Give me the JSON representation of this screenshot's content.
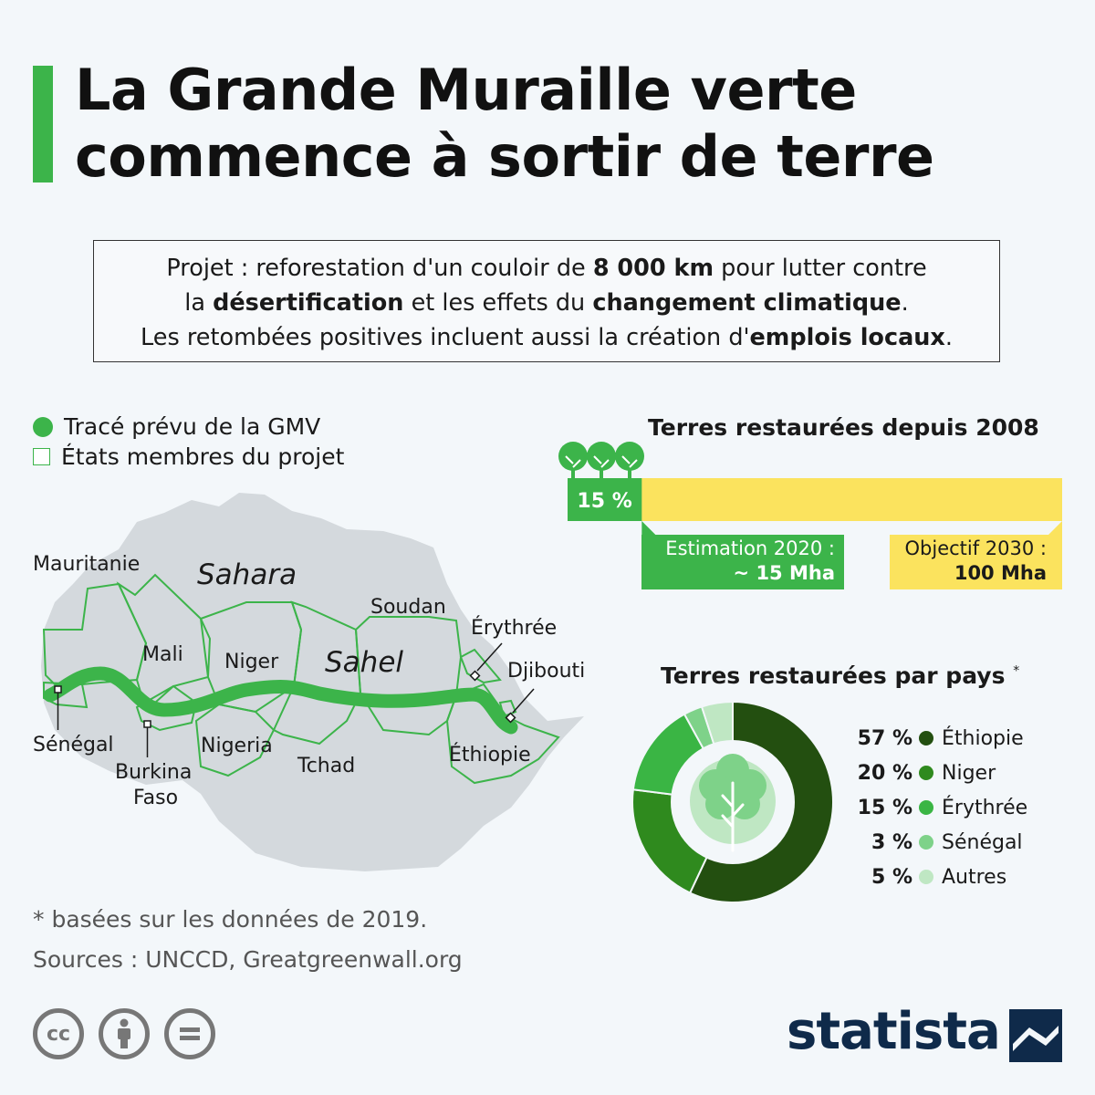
{
  "title": "La Grande Muraille verte commence à sortir de terre",
  "intro": {
    "line1_a": "Projet : reforestation d'un couloir de ",
    "line1_b": "8 000 km",
    "line1_c": " pour lutter contre",
    "line2_a": "la ",
    "line2_b": "désertification",
    "line2_c": " et les effets du ",
    "line2_d": "changement climatique",
    "line2_e": ".",
    "line3_a": "Les retombées positives incluent aussi la création d'",
    "line3_b": "emplois locaux",
    "line3_c": "."
  },
  "legend": {
    "route": "Tracé prévu de la GMV",
    "members": "États membres du projet"
  },
  "map": {
    "regions": [
      "Sahara",
      "Sahel"
    ],
    "countries": {
      "mauritanie": "Mauritanie",
      "mali": "Mali",
      "niger": "Niger",
      "soudan": "Soudan",
      "erythree": "Érythrée",
      "djibouti": "Djibouti",
      "senegal": "Sénégal",
      "burkina": "Burkina",
      "faso": "Faso",
      "nigeria": "Nigeria",
      "tchad": "Tchad",
      "ethiopie": "Éthiopie"
    }
  },
  "chart_data": [
    {
      "type": "bar",
      "title": "Terres restaurées depuis 2008",
      "unit": "Mha",
      "progress_percent": 15,
      "progress_label": "15 %",
      "estimate_label": "Estimation 2020 :",
      "estimate_value": "~ 15 Mha",
      "target_label": "Objectif 2030 :",
      "target_value": "100 Mha",
      "estimate": 15,
      "target": 100
    },
    {
      "type": "pie",
      "title": "Terres restaurées par pays",
      "title_mark": "*",
      "slices": [
        {
          "name": "Éthiopie",
          "value": 57,
          "label": "57 %",
          "color": "#234f10"
        },
        {
          "name": "Niger",
          "value": 20,
          "label": "20 %",
          "color": "#2f8a1e"
        },
        {
          "name": "Érythrée",
          "value": 15,
          "label": "15 %",
          "color": "#3ab544"
        },
        {
          "name": "Sénégal",
          "value": 3,
          "label": "3 %",
          "color": "#7ed289"
        },
        {
          "name": "Autres",
          "value": 5,
          "label": "5 %",
          "color": "#bfe7c3"
        }
      ]
    }
  ],
  "notes": {
    "footnote": "* basées sur les données de 2019.",
    "sources": "Sources : UNCCD, Greatgreenwall.org"
  },
  "license": {
    "icons": [
      "cc-icon",
      "attribution-icon",
      "no-derivatives-icon"
    ],
    "cc": "cc"
  },
  "brand": "statista",
  "colors": {
    "accent": "#3cb44a",
    "target": "#fbe35e",
    "map_land": "#d4d9dd",
    "brand": "#0f2a4a"
  }
}
